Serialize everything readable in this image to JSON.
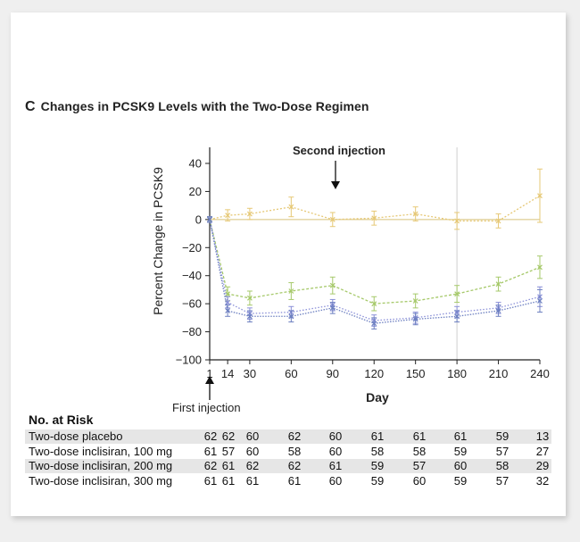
{
  "panel": {
    "letter": "C",
    "title": "Changes in PCSK9 Levels with the Two-Dose Regimen"
  },
  "colors": {
    "placebo": "#e6c875",
    "dose100": "#a6c96a",
    "dose200": "#8a8fd8",
    "dose300": "#6c7fc0",
    "axis": "#222222",
    "zero_line": "#d8c27a",
    "marker_line": "#cfcfcf",
    "risk_shade": "#e6e6e6"
  },
  "chart_data": {
    "type": "line",
    "title": "Changes in PCSK9 Levels with the Two-Dose Regimen",
    "xlabel": "Day",
    "ylabel": "Percent Change in PCSK9",
    "x": [
      1,
      14,
      30,
      60,
      90,
      120,
      150,
      180,
      210,
      240
    ],
    "x_ticks": [
      "1",
      "14",
      "30",
      "60",
      "90",
      "120",
      "150",
      "180",
      "210",
      "240"
    ],
    "y_ticks": [
      "40",
      "20",
      "0",
      "−20",
      "−40",
      "−60",
      "−80",
      "−100"
    ],
    "ylim": [
      -100,
      40
    ],
    "xlim": [
      1,
      240
    ],
    "grid": false,
    "annotations": {
      "second_injection": "Second injection",
      "first_injection": "First injection"
    },
    "series": [
      {
        "key": "placebo",
        "values": [
          0,
          3,
          4,
          9,
          0,
          1,
          4,
          -1,
          -1,
          17
        ],
        "err": [
          2,
          4,
          4,
          7,
          5,
          5,
          5,
          6,
          5,
          19
        ]
      },
      {
        "key": "dose100",
        "values": [
          0,
          -53,
          -56,
          -51,
          -47,
          -60,
          -58,
          -53,
          -46,
          -34
        ],
        "err": [
          2,
          5,
          5,
          6,
          6,
          5,
          5,
          6,
          5,
          8
        ]
      },
      {
        "key": "dose200",
        "values": [
          0,
          -59,
          -67,
          -66,
          -61,
          -72,
          -70,
          -66,
          -63,
          -55
        ],
        "err": [
          2,
          4,
          4,
          4,
          4,
          4,
          4,
          4,
          4,
          7
        ]
      },
      {
        "key": "dose300",
        "values": [
          0,
          -65,
          -69,
          -69,
          -63,
          -74,
          -71,
          -69,
          -65,
          -58
        ],
        "err": [
          2,
          4,
          4,
          4,
          4,
          4,
          4,
          4,
          4,
          8
        ]
      }
    ]
  },
  "risk": {
    "heading": "No. at Risk",
    "rows": [
      {
        "label": "Two-dose placebo",
        "values": [
          "62",
          "62",
          "60",
          "62",
          "60",
          "61",
          "61",
          "61",
          "59",
          "13"
        ]
      },
      {
        "label": "Two-dose inclisiran, 100 mg",
        "values": [
          "61",
          "57",
          "60",
          "58",
          "60",
          "58",
          "58",
          "59",
          "57",
          "27"
        ]
      },
      {
        "label": "Two-dose inclisiran, 200 mg",
        "values": [
          "62",
          "61",
          "62",
          "62",
          "61",
          "59",
          "57",
          "60",
          "58",
          "29"
        ]
      },
      {
        "label": "Two-dose inclisiran, 300 mg",
        "values": [
          "61",
          "61",
          "61",
          "61",
          "60",
          "59",
          "60",
          "59",
          "57",
          "32"
        ]
      }
    ]
  }
}
